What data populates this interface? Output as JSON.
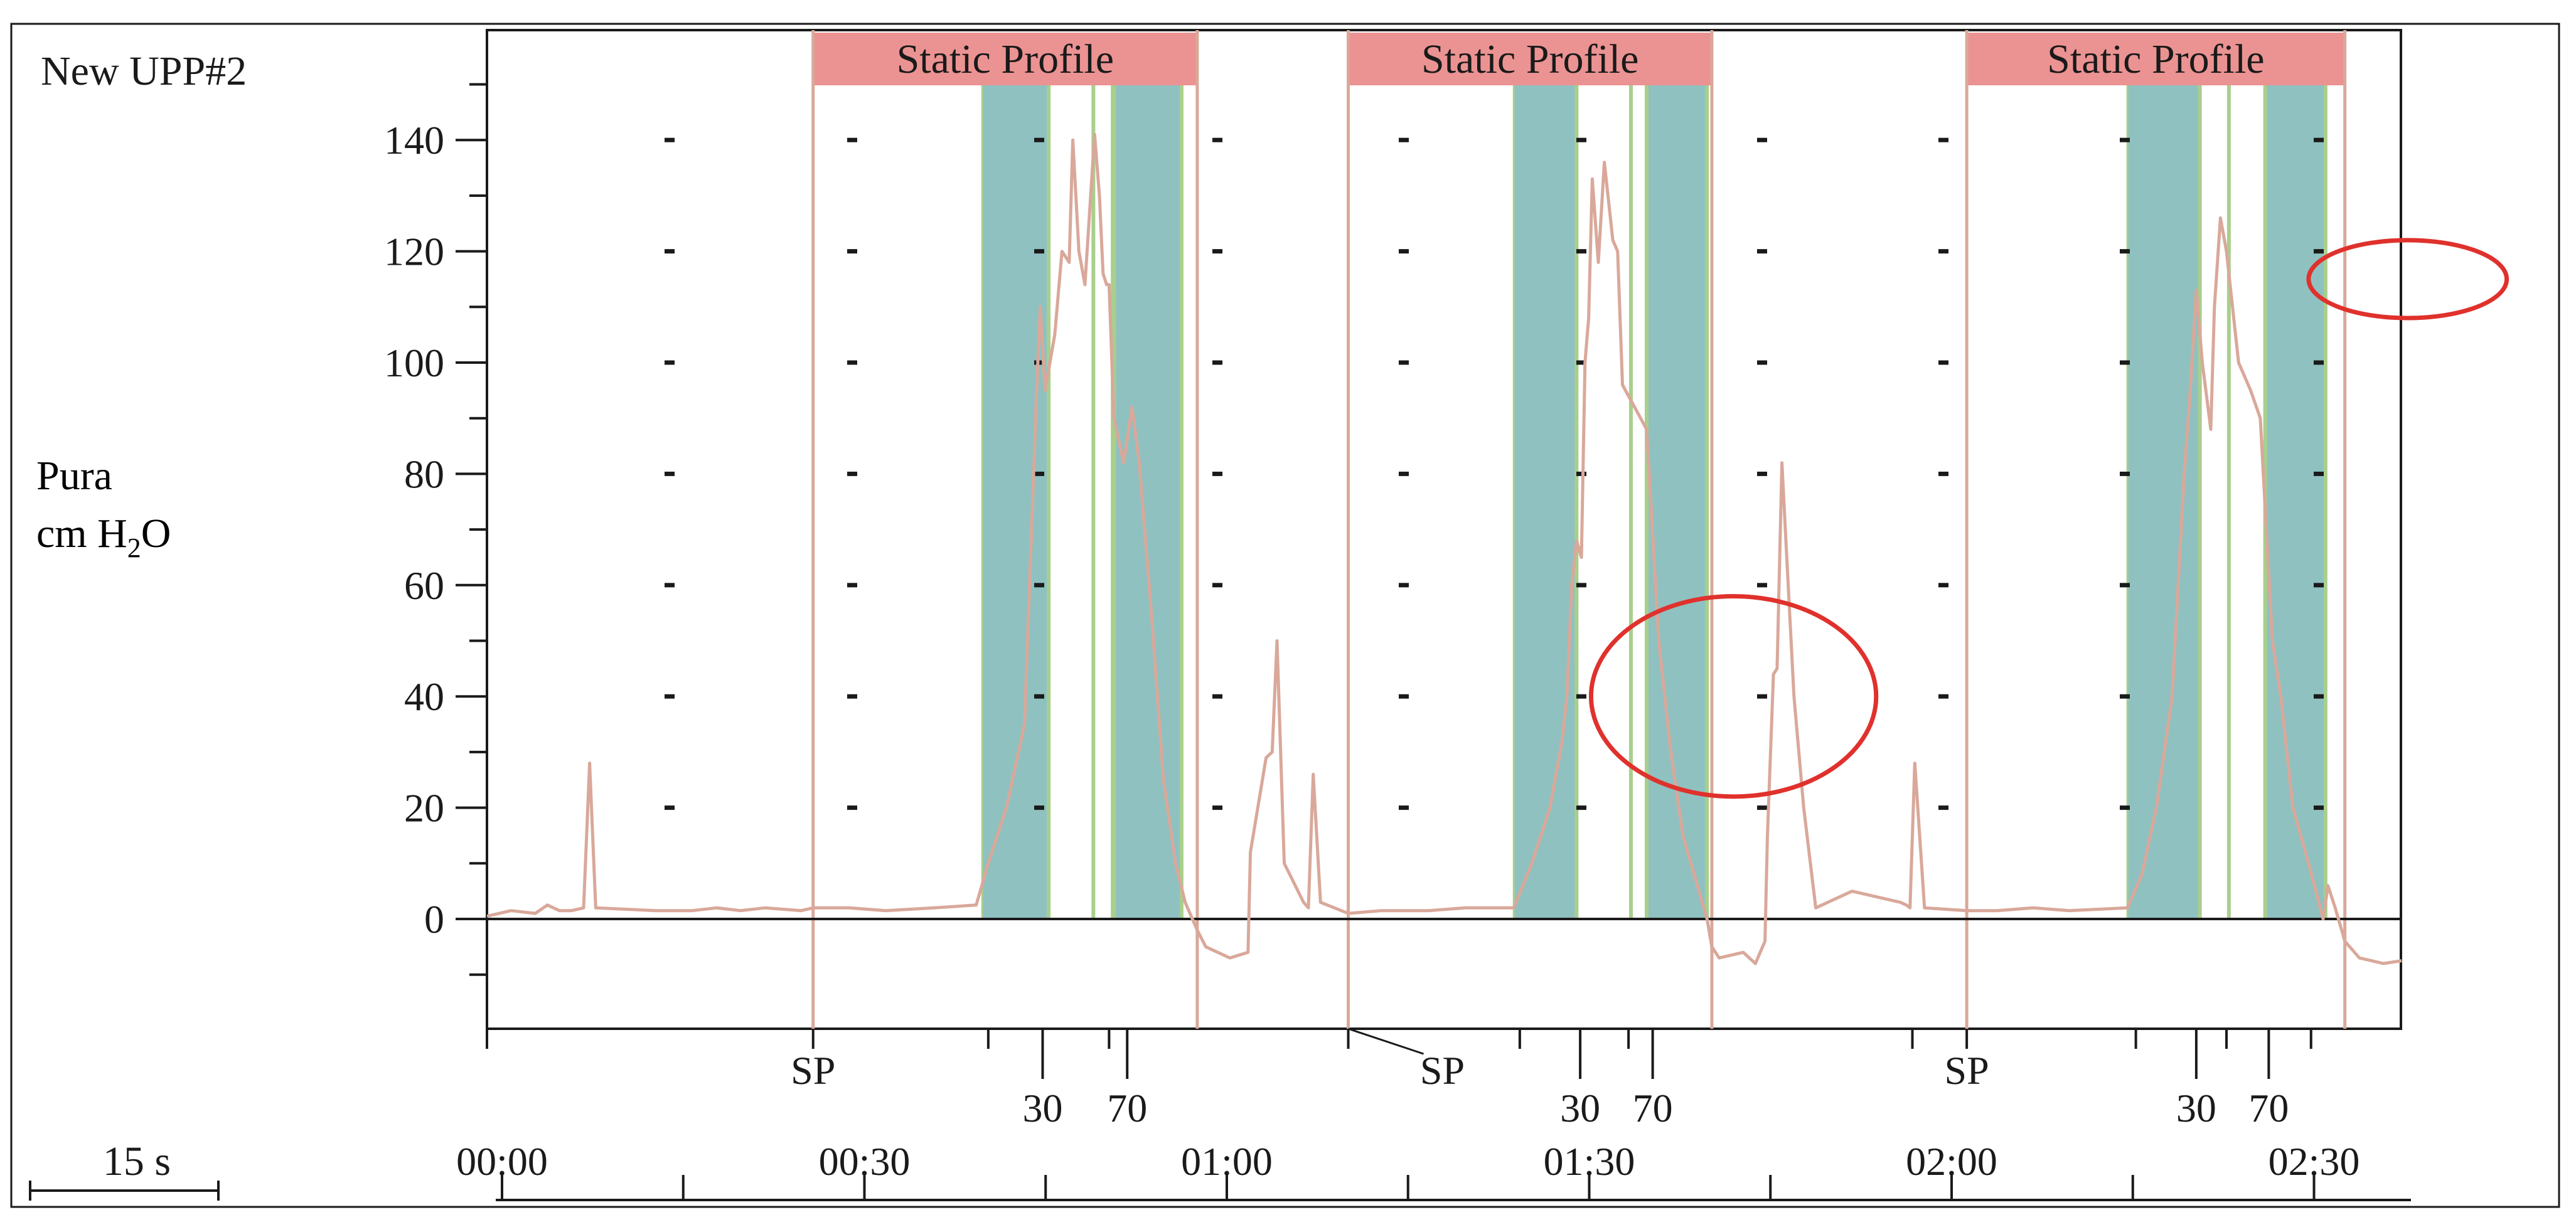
{
  "chart_data": {
    "type": "line",
    "title": "New UPP#2",
    "ylabel_line1": "Pura",
    "ylabel_line2_prefix": "cm H",
    "ylabel_line2_sub": "2",
    "ylabel_line2_suffix": "O",
    "ylim": [
      -20,
      160
    ],
    "xlim": [
      0,
      170
    ],
    "yticks": [
      0,
      20,
      40,
      60,
      80,
      100,
      120,
      140
    ],
    "ytick_labels": [
      "0",
      "20",
      "40",
      "60",
      "80",
      "100",
      "120",
      "140"
    ],
    "time_labels": [
      {
        "t": 0,
        "label": "00:00"
      },
      {
        "t": 30,
        "label": "00:30"
      },
      {
        "t": 60,
        "label": "01:00"
      },
      {
        "t": 90,
        "label": "01:30"
      },
      {
        "t": 120,
        "label": "02:00"
      },
      {
        "t": 150,
        "label": "02:30"
      }
    ],
    "scale_bar_label": "15 s",
    "static_profiles": [
      {
        "label": "Static Profile",
        "start": 27.0,
        "end": 58.8,
        "teal_bands": [
          [
            41.0,
            46.5
          ],
          [
            52.0,
            57.5
          ]
        ],
        "green_lines": [
          50.2,
          51.8
        ]
      },
      {
        "label": "Static Profile",
        "start": 71.3,
        "end": 101.4,
        "teal_bands": [
          [
            85.0,
            90.2
          ],
          [
            96.0,
            101.0
          ]
        ],
        "green_lines": [
          94.7,
          96.0
        ]
      },
      {
        "label": "Static Profile",
        "start": 122.5,
        "end": 153.8,
        "teal_bands": [
          [
            135.8,
            141.8
          ],
          [
            147.2,
            152.2
          ]
        ],
        "green_lines": [
          144.2,
          147.2
        ]
      }
    ],
    "event_marks": [
      {
        "t": 27.0,
        "label": "SP"
      },
      {
        "t": 41.5,
        "label": ""
      },
      {
        "t": 46.0,
        "label": "30"
      },
      {
        "t": 51.5,
        "label": ""
      },
      {
        "t": 53.0,
        "label": "70"
      },
      {
        "t": 71.3,
        "label": "SP"
      },
      {
        "t": 85.5,
        "label": ""
      },
      {
        "t": 90.5,
        "label": "30"
      },
      {
        "t": 94.5,
        "label": ""
      },
      {
        "t": 96.5,
        "label": "70"
      },
      {
        "t": 118.0,
        "label": ""
      },
      {
        "t": 122.5,
        "label": "SP"
      },
      {
        "t": 136.5,
        "label": ""
      },
      {
        "t": 141.5,
        "label": "30"
      },
      {
        "t": 144.0,
        "label": ""
      },
      {
        "t": 147.5,
        "label": "70"
      },
      {
        "t": 151.0,
        "label": ""
      }
    ],
    "pressure_series": {
      "name": "Pura",
      "x": [
        0,
        2,
        4,
        5,
        6,
        7,
        8,
        8.5,
        9,
        14,
        17,
        19,
        21,
        23,
        26,
        27,
        30,
        33,
        37,
        40.5,
        41.5,
        43,
        44.5,
        45.5,
        45.8,
        46.2,
        47.0,
        47.6,
        48.2,
        48.5,
        49.0,
        49.5,
        50.3,
        50.7,
        51.0,
        51.3,
        51.5,
        51.9,
        52.7,
        53.4,
        54.0,
        55.0,
        56.0,
        57.0,
        57.8,
        58.8,
        59.5,
        61.5,
        63.0,
        63.2,
        64.5,
        65.0,
        65.4,
        66.0,
        67.6,
        68.0,
        68.4,
        69.0,
        71.3,
        74,
        78,
        81,
        85.0,
        86.5,
        88.0,
        89.0,
        89.4,
        89.8,
        90.2,
        90.6,
        90.9,
        91.2,
        91.5,
        92.0,
        92.5,
        92.8,
        93.2,
        93.6,
        94.0,
        95.0,
        96.0,
        97.0,
        98.0,
        99.0,
        101.0,
        101.4,
        102.0,
        104.0,
        105.0,
        105.8,
        106.0,
        106.5,
        106.8,
        107.2,
        107.6,
        108.2,
        109.0,
        110.0,
        113.0,
        117.0,
        117.5,
        117.8,
        118.2,
        119.0,
        122.5,
        125,
        128,
        131,
        135.8,
        137.0,
        138.2,
        139.5,
        140.5,
        141.0,
        141.5,
        142.0,
        142.7,
        143.0,
        143.5,
        144.0,
        145.0,
        146.0,
        146.8,
        147.8,
        148.5,
        149.5,
        150.8,
        152.0,
        152.4,
        153.0,
        153.8,
        155.0,
        157.0,
        158.5
      ],
      "y": [
        0.5,
        1.5,
        1,
        2.5,
        1.5,
        1.5,
        2,
        28,
        2,
        1.5,
        1.5,
        2,
        1.5,
        2,
        1.5,
        2,
        2,
        1.5,
        2,
        2.5,
        10,
        20,
        35,
        95,
        110,
        95,
        105,
        120,
        118,
        140,
        120,
        114,
        141,
        130,
        116,
        114,
        114,
        90,
        82,
        92,
        82,
        55,
        25,
        10,
        3,
        -2,
        -5,
        -7,
        -6,
        12,
        29,
        30,
        50,
        10,
        3,
        2,
        26,
        3,
        1,
        1.5,
        1.5,
        2,
        2,
        10,
        20,
        32,
        40,
        60,
        68,
        65,
        100,
        108,
        133,
        118,
        136,
        130,
        122,
        120,
        96,
        92,
        88,
        50,
        30,
        15,
        0,
        -5,
        -7,
        -6,
        -8,
        -4,
        15,
        44,
        45,
        82,
        65,
        40,
        20,
        2,
        5,
        3,
        2.5,
        2,
        28,
        2,
        1.5,
        1.5,
        2,
        1.5,
        2,
        8,
        20,
        40,
        80,
        95,
        113,
        100,
        88,
        110,
        126,
        120,
        100,
        95,
        90,
        50,
        40,
        20,
        10,
        0,
        6,
        2,
        -4,
        -7,
        -8,
        -7.5
      ]
    },
    "annotations": [
      {
        "shape": "ellipse",
        "cx": 103.2,
        "cy": 40,
        "rx": 11.8,
        "ry": 18,
        "color": "#e0312c"
      },
      {
        "shape": "ellipse",
        "cx": 159.0,
        "cy": 115,
        "rx": 8.2,
        "ry": 7,
        "color": "#e0312c"
      }
    ],
    "colors": {
      "line": "#d9a89a",
      "teal": "#8fc1c1",
      "green": "#a8cf8c",
      "static_header": "#eb9392",
      "annotation": "#e0312c",
      "axis": "#1a1a1a"
    }
  }
}
